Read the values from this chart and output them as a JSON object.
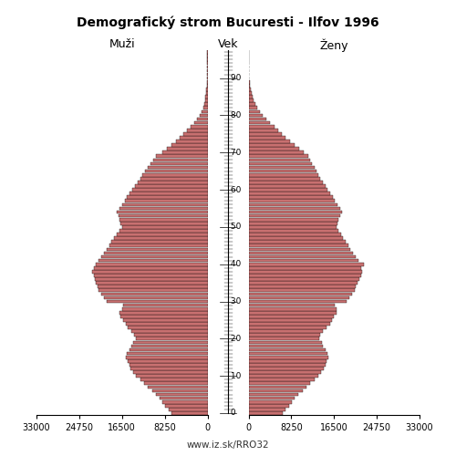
{
  "title": "Demografický strom Bucuresti - Ilfov 1996",
  "label_males": "Muži",
  "label_age": "Vek",
  "label_females": "Ženy",
  "footer": "www.iz.sk/RRO32",
  "xlim": 33000,
  "bar_color": "#c87070",
  "bar_edge_color": "#000000",
  "bar_linewidth": 0.25,
  "background_color": "#ffffff",
  "ages": [
    0,
    1,
    2,
    3,
    4,
    5,
    6,
    7,
    8,
    9,
    10,
    11,
    12,
    13,
    14,
    15,
    16,
    17,
    18,
    19,
    20,
    21,
    22,
    23,
    24,
    25,
    26,
    27,
    28,
    29,
    30,
    31,
    32,
    33,
    34,
    35,
    36,
    37,
    38,
    39,
    40,
    41,
    42,
    43,
    44,
    45,
    46,
    47,
    48,
    49,
    50,
    51,
    52,
    53,
    54,
    55,
    56,
    57,
    58,
    59,
    60,
    61,
    62,
    63,
    64,
    65,
    66,
    67,
    68,
    69,
    70,
    71,
    72,
    73,
    74,
    75,
    76,
    77,
    78,
    79,
    80,
    81,
    82,
    83,
    84,
    85,
    86,
    87,
    88,
    89,
    90,
    91,
    92,
    93,
    94,
    95,
    96,
    97
  ],
  "males": [
    7000,
    7500,
    8200,
    8800,
    9300,
    9900,
    10700,
    11500,
    12200,
    13000,
    13800,
    14300,
    14800,
    15100,
    15400,
    15700,
    15500,
    15100,
    14700,
    14400,
    13900,
    14100,
    14700,
    15400,
    15800,
    16200,
    16800,
    17000,
    16500,
    16200,
    19500,
    20000,
    20500,
    21000,
    21200,
    21500,
    21800,
    22000,
    22200,
    22000,
    21500,
    21000,
    20500,
    20000,
    19500,
    19000,
    18500,
    18000,
    17500,
    17000,
    16500,
    16800,
    17000,
    17200,
    17500,
    17000,
    16500,
    16000,
    15500,
    15000,
    14500,
    14000,
    13500,
    13000,
    12500,
    12000,
    11500,
    11000,
    10500,
    10000,
    8800,
    7800,
    6900,
    6100,
    5300,
    4600,
    3900,
    3200,
    2600,
    2000,
    1500,
    1150,
    880,
    670,
    510,
    390,
    280,
    200,
    140,
    100,
    70,
    50,
    35,
    20,
    10,
    5,
    2,
    1
  ],
  "females": [
    6600,
    7200,
    7900,
    8400,
    8900,
    9600,
    10400,
    11200,
    11900,
    12700,
    13500,
    14000,
    14500,
    14800,
    15100,
    15400,
    15200,
    14800,
    14400,
    14100,
    13600,
    13800,
    14400,
    15100,
    15700,
    16100,
    16500,
    16900,
    17000,
    16700,
    19000,
    19500,
    20000,
    20500,
    20700,
    21000,
    21400,
    21700,
    21900,
    21700,
    22200,
    21200,
    20600,
    20100,
    19600,
    19200,
    18700,
    18200,
    17800,
    17300,
    16900,
    17200,
    17400,
    17700,
    18000,
    17600,
    17200,
    16700,
    16200,
    15700,
    15200,
    14800,
    14400,
    13900,
    13500,
    13100,
    12700,
    12300,
    11900,
    11500,
    10600,
    9700,
    8800,
    8000,
    7200,
    6500,
    5700,
    5000,
    4200,
    3500,
    2800,
    2200,
    1700,
    1300,
    1000,
    800,
    610,
    450,
    320,
    220,
    150,
    100,
    65,
    40,
    20,
    10,
    4,
    1
  ]
}
